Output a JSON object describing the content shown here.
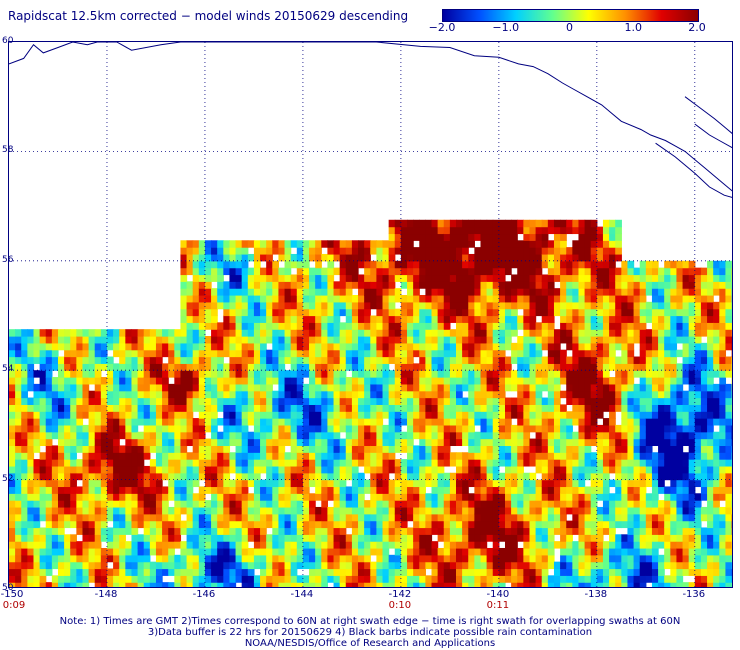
{
  "title": "Rapidscat 12.5km corrected − model winds 20150629 descending",
  "colorbar": {
    "ticks": [
      "−2.0",
      "−1.0",
      "0",
      "1.0",
      "2.0"
    ],
    "range": [
      -2.0,
      2.0
    ],
    "colors": [
      "#0000a0",
      "#0050ff",
      "#00d0ff",
      "#60ff90",
      "#ffff00",
      "#ff9000",
      "#e00000",
      "#8b0000"
    ]
  },
  "map": {
    "lon_range": [
      -150,
      -135.2
    ],
    "lat_range": [
      50,
      60
    ],
    "lat_labels": [
      "60",
      "58",
      "56",
      "54",
      "52",
      "50"
    ],
    "lon_labels": [
      "-150",
      "-148",
      "-146",
      "-144",
      "-142",
      "-140",
      "-138",
      "-136"
    ],
    "grid": "dotted",
    "coastline_color": "#000080"
  },
  "time_labels": [
    {
      "text": "0:09",
      "lon": -150
    },
    {
      "text": "0:10",
      "lon": -142
    },
    {
      "text": "0:11",
      "lon": -140
    }
  ],
  "notes": [
    "Note: 1) Times are GMT 2)Times correspond to 60N at right swath edge − time is right swath for overlapping swaths at 60N",
    "3)Data buffer is 22 hrs for 20150629 4) Black barbs indicate possible rain contamination",
    "NOAA/NESDIS/Office of Research and Applications"
  ]
}
